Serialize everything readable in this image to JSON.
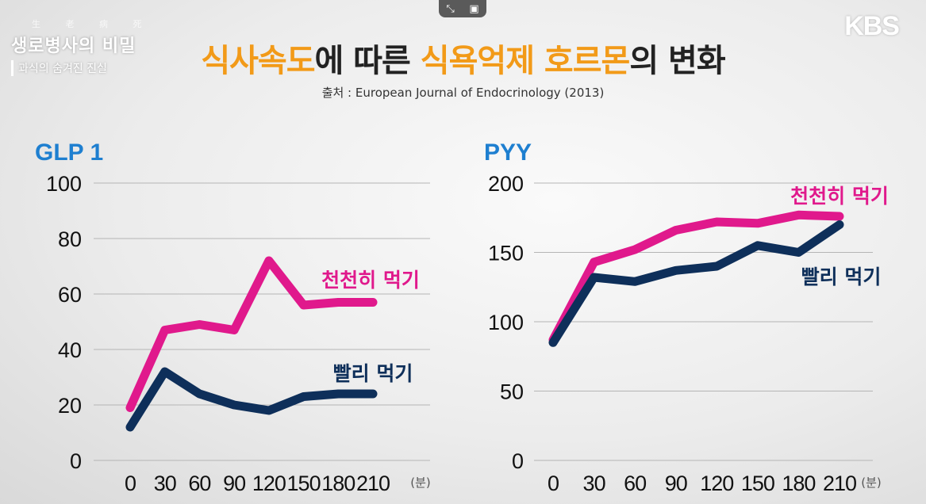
{
  "header": {
    "hanja": "生 老 病 死",
    "show_title": "생로병사의 비밀",
    "episode_subtitle": "과식의 숨겨진 진실",
    "broadcaster": "KBS",
    "title_parts": [
      {
        "text": "식사속도",
        "hl": true
      },
      {
        "text": "에 따른 ",
        "hl": false
      },
      {
        "text": "식욕억제 호르몬",
        "hl": true
      },
      {
        "text": "의 변화",
        "hl": false
      }
    ],
    "source": "출처 : European Journal of Endocrinology (2013)"
  },
  "colors": {
    "slow": "#e0198c",
    "fast": "#0e2f5a",
    "chart_title": "#1e7fd0",
    "grid": "#b5b5b5"
  },
  "chart_data": [
    {
      "type": "line",
      "title": "GLP 1",
      "x": [
        0,
        30,
        60,
        90,
        120,
        150,
        180,
        210
      ],
      "x_unit": "(분)",
      "ylim": [
        0,
        100
      ],
      "yticks": [
        0,
        20,
        40,
        60,
        80,
        100
      ],
      "series": [
        {
          "name": "천천히 먹기",
          "key": "slow",
          "values": [
            19,
            47,
            49,
            47,
            72,
            56,
            57,
            57
          ]
        },
        {
          "name": "빨리 먹기",
          "key": "fast",
          "values": [
            12,
            32,
            24,
            20,
            18,
            23,
            24,
            24
          ]
        }
      ]
    },
    {
      "type": "line",
      "title": "PYY",
      "x": [
        0,
        30,
        60,
        90,
        120,
        150,
        180,
        210
      ],
      "x_unit": "(분)",
      "ylim": [
        0,
        200
      ],
      "yticks": [
        0,
        50,
        100,
        150,
        200
      ],
      "series": [
        {
          "name": "천천히 먹기",
          "key": "slow",
          "values": [
            87,
            143,
            152,
            166,
            172,
            171,
            177,
            176
          ]
        },
        {
          "name": "빨리 먹기",
          "key": "fast",
          "values": [
            85,
            132,
            129,
            137,
            140,
            155,
            150,
            170
          ]
        }
      ]
    }
  ]
}
